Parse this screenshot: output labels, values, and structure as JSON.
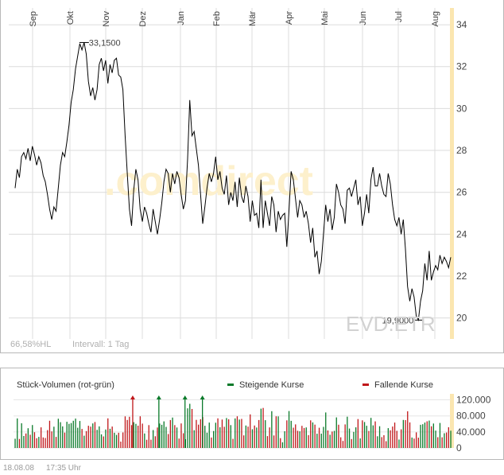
{
  "chart_data": [
    {
      "type": "line",
      "symbol": "EVD.ETR",
      "watermark": ".comdirect",
      "info_left": "66,58%HL",
      "info_interval": "Intervall: 1 Tag",
      "x_tick_labels": [
        "Sep",
        "Okt",
        "Nov",
        "Dez",
        "Jan",
        "Feb",
        "Mär",
        "Apr",
        "Mai",
        "Jun",
        "Jul",
        "Aug"
      ],
      "y_tick_labels": [
        "34",
        "32",
        "30",
        "28",
        "26",
        "24",
        "22",
        "20"
      ],
      "ylim": [
        19.0,
        34.8
      ],
      "grid": true,
      "high_label": "33,1500",
      "low_label": "19,9000",
      "colors": {
        "line": "#000000",
        "grid": "#dcdcdc",
        "axis_highlight": "#fbe6b0",
        "watermark": "#fdf0cc",
        "symbol": "#d4d4d4"
      },
      "series": [
        {
          "values": [
            26.2,
            27.1,
            26.7,
            27.7,
            27.9,
            27.6,
            28.1,
            27.5,
            28.2,
            27.8,
            27.3,
            27.7,
            27.4,
            26.8,
            26.5,
            25.9,
            25.2,
            24.7,
            25.3,
            25.1,
            26.2,
            27.3,
            27.9,
            27.7,
            28.4,
            29.2,
            30.3,
            30.9,
            31.9,
            32.5,
            33.1,
            32.8,
            33.15,
            32.6,
            31.3,
            30.6,
            31.0,
            30.4,
            30.9,
            32.1,
            32.4,
            31.8,
            32.3,
            31.2,
            32.1,
            31.7,
            32.3,
            32.4,
            31.6,
            31.5,
            30.9,
            28.7,
            26.9,
            25.2,
            24.4,
            26.1,
            27.1,
            26.6,
            25.2,
            24.6,
            25.3,
            25.0,
            24.5,
            24.1,
            25.2,
            24.6,
            24.0,
            24.7,
            25.5,
            26.5,
            27.1,
            26.9,
            26.0,
            26.9,
            26.4,
            27.0,
            26.7,
            25.9,
            25.2,
            25.6,
            27.6,
            30.4,
            28.7,
            28.9,
            28.1,
            27.3,
            25.9,
            24.5,
            25.3,
            26.2,
            26.9,
            26.5,
            26.9,
            27.7,
            26.6,
            27.0,
            26.2,
            25.9,
            26.8,
            25.4,
            26.0,
            25.6,
            26.5,
            25.3,
            26.7,
            25.8,
            25.5,
            26.3,
            25.8,
            24.6,
            25.6,
            24.9,
            25.0,
            24.3,
            26.6,
            24.3,
            25.6,
            25.0,
            24.4,
            25.8,
            25.4,
            24.1,
            25.1,
            24.7,
            24.9,
            25.0,
            23.4,
            25.1,
            27.0,
            26.6,
            25.7,
            24.8,
            25.6,
            25.4,
            24.8,
            25.1,
            24.5,
            23.6,
            24.3,
            22.9,
            23.2,
            22.1,
            22.7,
            24.0,
            25.4,
            24.6,
            25.2,
            24.2,
            24.8,
            26.4,
            26.0,
            25.4,
            25.2,
            24.5,
            26.1,
            26.2,
            25.8,
            26.2,
            26.6,
            25.4,
            25.8,
            24.4,
            25.0,
            25.9,
            25.0,
            26.6,
            27.2,
            26.3,
            26.3,
            26.9,
            26.3,
            25.9,
            25.8,
            26.9,
            26.4,
            25.4,
            24.7,
            24.4,
            24.8,
            24.0,
            24.7,
            23.3,
            21.5,
            20.8,
            21.4,
            21.0,
            20.1,
            19.9,
            20.8,
            21.3,
            22.6,
            21.8,
            23.2,
            21.8,
            22.2,
            22.5,
            22.3,
            23.0,
            22.6,
            22.9,
            22.7,
            22.4,
            22.9
          ]
        },
        {
          "note": ""
        }
      ]
    },
    {
      "type": "bar",
      "title": "Stück-Volumen (rot-grün)",
      "legend": [
        {
          "label": "Steigende Kurse",
          "color": "#0a7a2a"
        },
        {
          "label": "Fallende Kurse",
          "color": "#c0171a"
        }
      ],
      "y_tick_labels": [
        "120.000",
        "80.000",
        "40.000",
        "0"
      ],
      "ylim": [
        0,
        135000
      ],
      "colors": {
        "up": "#0a7a2a",
        "down": "#c0171a"
      }
    }
  ],
  "footer": {
    "date": "18.08.08",
    "time": "17:35 Uhr"
  }
}
